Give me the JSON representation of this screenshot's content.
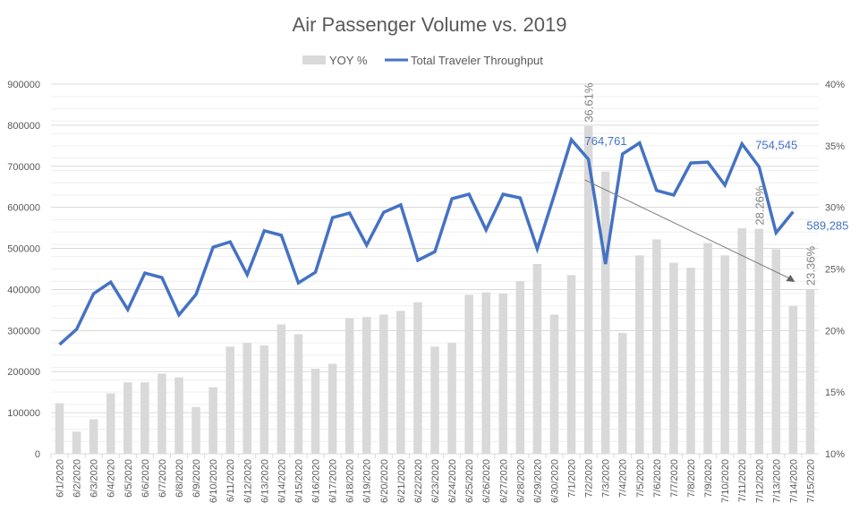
{
  "chart_data": {
    "type": "bar+line",
    "title": "Air Passenger Volume vs. 2019",
    "legend": {
      "placement": "top"
    },
    "categories": [
      "6/1/2020",
      "6/2/2020",
      "6/3/2020",
      "6/4/2020",
      "6/5/2020",
      "6/6/2020",
      "6/7/2020",
      "6/8/2020",
      "6/9/2020",
      "6/10/2020",
      "6/11/2020",
      "6/12/2020",
      "6/13/2020",
      "6/14/2020",
      "6/15/2020",
      "6/16/2020",
      "6/17/2020",
      "6/18/2020",
      "6/19/2020",
      "6/20/2020",
      "6/21/2020",
      "6/22/2020",
      "6/23/2020",
      "6/24/2020",
      "6/25/2020",
      "6/26/2020",
      "6/27/2020",
      "6/28/2020",
      "6/29/2020",
      "6/30/2020",
      "7/1/2020",
      "7/2/2020",
      "7/3/2020",
      "7/4/2020",
      "7/5/2020",
      "7/6/2020",
      "7/7/2020",
      "7/8/2020",
      "7/9/2020",
      "7/10/2020",
      "7/11/2020",
      "7/12/2020",
      "7/13/2020",
      "7/14/2020",
      "7/15/2020"
    ],
    "series": [
      {
        "name": "YOY %",
        "type": "bar",
        "axis": "right",
        "color": "#d9d9d9",
        "values": [
          14.1,
          11.8,
          12.8,
          14.9,
          15.8,
          15.8,
          16.5,
          16.2,
          13.8,
          15.4,
          18.7,
          19.0,
          18.8,
          20.5,
          19.7,
          16.9,
          17.3,
          21.0,
          21.1,
          21.3,
          21.6,
          22.3,
          18.7,
          19.0,
          22.9,
          23.1,
          23.0,
          24.0,
          25.4,
          21.3,
          24.5,
          36.61,
          32.9,
          19.8,
          26.1,
          27.4,
          25.5,
          25.1,
          27.1,
          26.1,
          28.3,
          28.26,
          26.6,
          22.0,
          23.36
        ]
      },
      {
        "name": "Total Traveler Throughput",
        "type": "line",
        "axis": "left",
        "color": "#4472c4",
        "values": [
          266000,
          303000,
          390000,
          418000,
          351000,
          440000,
          429000,
          338000,
          388000,
          503000,
          516000,
          436000,
          543000,
          532000,
          416000,
          442000,
          575000,
          586000,
          508000,
          588000,
          606000,
          471000,
          492000,
          621000,
          632000,
          545000,
          632000,
          623000,
          499000,
          630000,
          764761,
          717000,
          462000,
          730000,
          757000,
          641000,
          630000,
          708000,
          710000,
          654000,
          754545,
          699000,
          538000,
          589285,
          null
        ]
      }
    ],
    "data_labels": [
      {
        "series": "YOY %",
        "category": "7/2/2020",
        "text": "36.61%"
      },
      {
        "series": "YOY %",
        "category": "7/12/2020",
        "text": "28.26%"
      },
      {
        "series": "YOY %",
        "category": "7/15/2020",
        "text": "23.36%"
      },
      {
        "series": "Total Traveler Throughput",
        "category": "7/1/2020",
        "text": "764,761"
      },
      {
        "series": "Total Traveler Throughput",
        "category": "7/11/2020",
        "text": "754,545"
      },
      {
        "series": "Total Traveler Throughput",
        "category": "7/14/2020",
        "text": "589,285"
      }
    ],
    "y_left": {
      "range": [
        0,
        900000
      ],
      "ticks": [
        "0",
        "100000",
        "200000",
        "300000",
        "400000",
        "500000",
        "600000",
        "700000",
        "800000",
        "900000"
      ]
    },
    "y_right": {
      "range": [
        10,
        40
      ],
      "ticks": [
        "10%",
        "15%",
        "20%",
        "25%",
        "30%",
        "35%",
        "40%"
      ]
    },
    "annotation": {
      "type": "arrow",
      "from_category": "7/2/2020",
      "to_category": "7/14/2020",
      "color": "#808080"
    },
    "grid": true
  }
}
